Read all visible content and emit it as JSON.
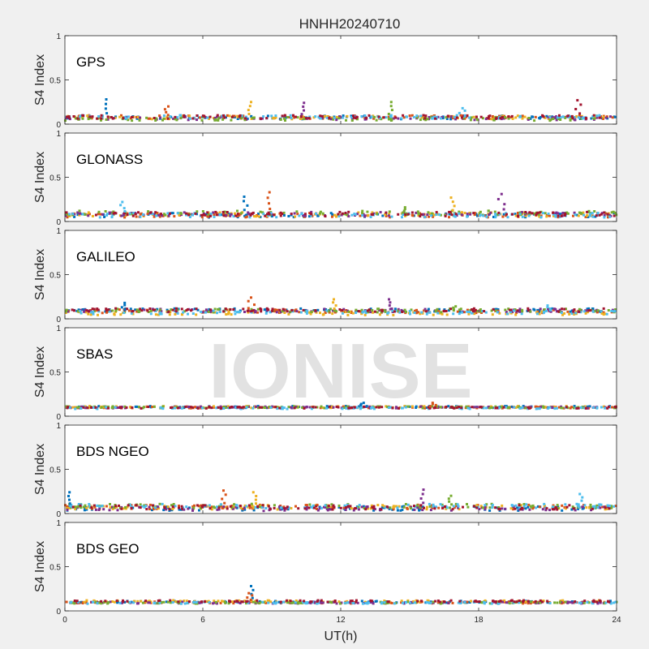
{
  "watermark": "IONISE",
  "chart_data": {
    "type": "scatter",
    "title": "HNHH20240710",
    "xlabel": "UT(h)",
    "ylabel": "S4 Index",
    "xlim": [
      0,
      24
    ],
    "ylim": [
      0,
      1
    ],
    "xticks": [
      "0",
      "6",
      "12",
      "18",
      "24"
    ],
    "yticks": [
      "0",
      "0.5",
      "1"
    ],
    "grid": false,
    "series_colors": [
      "#0072BD",
      "#D95319",
      "#EDB120",
      "#7E2F8E",
      "#77AC30",
      "#4DBEEE",
      "#A2142F"
    ],
    "panels": [
      {
        "name": "GPS",
        "baseline": 0.07,
        "spread": 0.04,
        "peaks": [
          {
            "x": 1.8,
            "y": 0.28
          },
          {
            "x": 4.5,
            "y": 0.2
          },
          {
            "x": 8.1,
            "y": 0.25
          },
          {
            "x": 10.4,
            "y": 0.24
          },
          {
            "x": 14.2,
            "y": 0.25
          },
          {
            "x": 17.3,
            "y": 0.18
          },
          {
            "x": 22.3,
            "y": 0.27
          }
        ]
      },
      {
        "name": "GLONASS",
        "baseline": 0.08,
        "spread": 0.05,
        "peaks": [
          {
            "x": 7.8,
            "y": 0.28
          },
          {
            "x": 8.9,
            "y": 0.33
          },
          {
            "x": 16.8,
            "y": 0.27
          },
          {
            "x": 19.0,
            "y": 0.31
          },
          {
            "x": 14.8,
            "y": 0.16
          },
          {
            "x": 2.5,
            "y": 0.22
          }
        ]
      },
      {
        "name": "GALILEO",
        "baseline": 0.08,
        "spread": 0.04,
        "peaks": [
          {
            "x": 2.6,
            "y": 0.18
          },
          {
            "x": 8.1,
            "y": 0.24
          },
          {
            "x": 11.7,
            "y": 0.22
          },
          {
            "x": 14.1,
            "y": 0.22
          },
          {
            "x": 17.0,
            "y": 0.14
          },
          {
            "x": 21.0,
            "y": 0.15
          }
        ]
      },
      {
        "name": "SBAS",
        "baseline": 0.1,
        "spread": 0.02,
        "peaks": [
          {
            "x": 13.0,
            "y": 0.15
          },
          {
            "x": 16.0,
            "y": 0.15
          }
        ]
      },
      {
        "name": "BDS NGEO",
        "baseline": 0.07,
        "spread": 0.05,
        "peaks": [
          {
            "x": 0.2,
            "y": 0.24
          },
          {
            "x": 6.9,
            "y": 0.26
          },
          {
            "x": 8.2,
            "y": 0.24
          },
          {
            "x": 15.6,
            "y": 0.27
          },
          {
            "x": 16.8,
            "y": 0.2
          },
          {
            "x": 22.4,
            "y": 0.22
          }
        ]
      },
      {
        "name": "BDS GEO",
        "baseline": 0.1,
        "spread": 0.02,
        "peaks": [
          {
            "x": 8.1,
            "y": 0.28
          },
          {
            "x": 8.0,
            "y": 0.2
          }
        ]
      }
    ]
  }
}
